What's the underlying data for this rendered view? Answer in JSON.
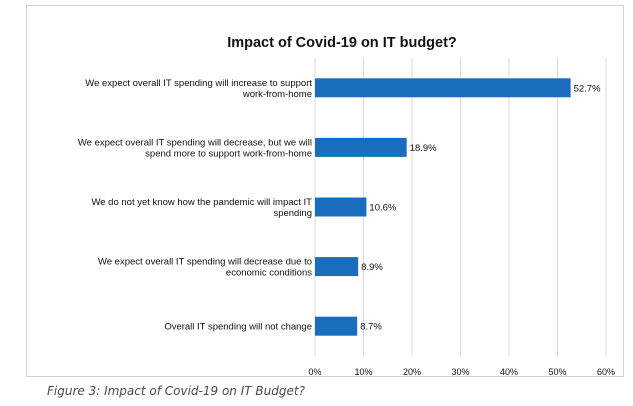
{
  "caption": "Figure 3: Impact of Covid-19 on IT Budget?",
  "chart_data": {
    "type": "bar",
    "orientation": "horizontal",
    "title": "Impact of Covid-19 on IT budget?",
    "categories": [
      [
        "We expect overall IT spending will increase to support",
        "work-from-home"
      ],
      [
        "We expect overall IT spending will decrease, but we will",
        "spend more to support work-from-home"
      ],
      [
        "We do not yet know how the pandemic will impact IT",
        "spending"
      ],
      [
        "We expect overall IT spending will decrease due to",
        "economic conditions"
      ],
      [
        "Overall IT spending will not change"
      ]
    ],
    "values": [
      52.7,
      18.9,
      10.6,
      8.9,
      8.7
    ],
    "value_labels": [
      "52.7%",
      "18.9%",
      "10.6%",
      "8.9%",
      "8.7%"
    ],
    "xlim": [
      0,
      60
    ],
    "x_ticks": [
      0,
      10,
      20,
      30,
      40,
      50,
      60
    ],
    "x_tick_labels": [
      "0%",
      "10%",
      "20%",
      "30%",
      "40%",
      "50%",
      "60%"
    ],
    "xlabel": "",
    "ylabel": "",
    "grid": "vertical",
    "legend": "none",
    "bar_color": "#1a6dbd",
    "grid_color": "#d9d9d9"
  }
}
